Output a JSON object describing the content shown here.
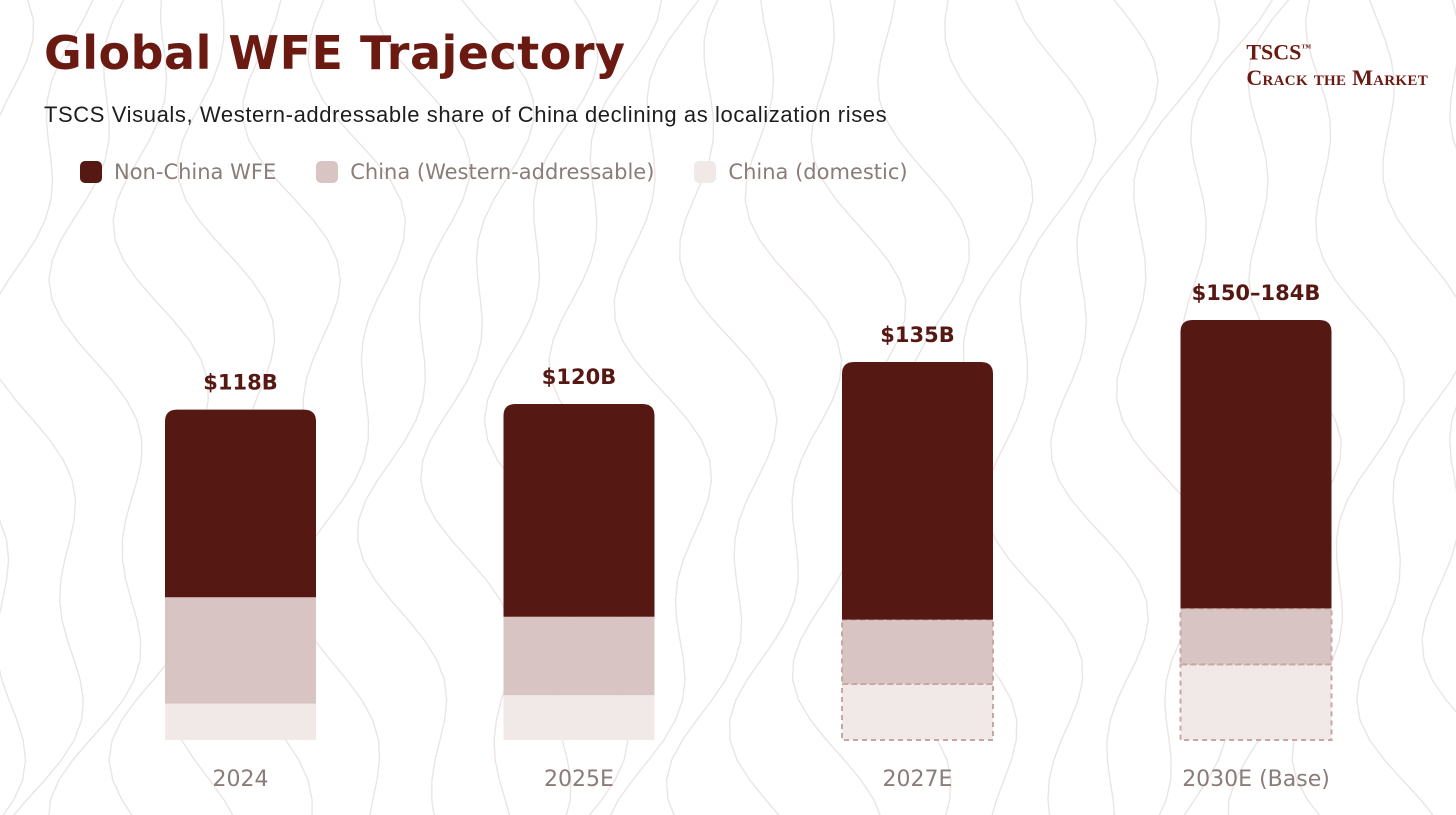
{
  "title": "Global WFE Trajectory",
  "subtitle": "TSCS Visuals, Western-addressable share of China declining as localization rises",
  "brand": {
    "name": "TSCS",
    "trademark": "™",
    "tagline": "Crack the Market"
  },
  "colors": {
    "non_china": "#561812",
    "china_western": "#d8c4c2",
    "china_domestic": "#f1e8e8",
    "title": "#6b1a12",
    "category_label": "#8a7c78",
    "dashed_border": "#c8a6a2"
  },
  "chart_data": {
    "type": "bar",
    "stacked": true,
    "title": "Global WFE Trajectory",
    "subtitle": "TSCS Visuals, Western-addressable share of China declining as localization rises",
    "categories": [
      "2024",
      "2025E",
      "2027E",
      "2030E (Base)"
    ],
    "totals_label": [
      "$118B",
      "$120B",
      "$135B",
      "$150–184B"
    ],
    "totals": [
      118,
      120,
      135,
      150
    ],
    "series": [
      {
        "name": "China (domestic)",
        "values": [
          13,
          16,
          20,
          27
        ]
      },
      {
        "name": "China (Western-addressable)",
        "values": [
          38,
          28,
          23,
          20
        ]
      },
      {
        "name": "Non-China WFE",
        "values": [
          67,
          76,
          92,
          103
        ]
      }
    ],
    "projected": [
      false,
      false,
      true,
      true
    ],
    "ylim": [
      0,
      150
    ],
    "legend_position": "top-left",
    "grid": false
  }
}
